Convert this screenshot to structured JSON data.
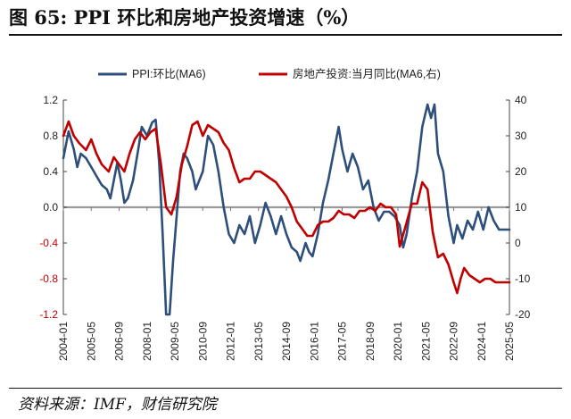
{
  "header": {
    "title": "图 65:  PPI 环比和房地产投资增速（%）"
  },
  "footer": {
    "source": "资料来源：IMF，财信研究院"
  },
  "chart_data": {
    "type": "line",
    "title": "",
    "legend_position": "top",
    "grid": false,
    "x_tick_labels": [
      "2004-01",
      "2005-05",
      "2006-09",
      "2008-01",
      "2009-05",
      "2010-09",
      "2012-01",
      "2013-05",
      "2014-09",
      "2016-01",
      "2017-05",
      "2018-09",
      "2020-01",
      "2021-05",
      "2022-09",
      "2024-01",
      "2025-05"
    ],
    "x_start": "2004-01",
    "x_end": "2025-05",
    "left_axis": {
      "min": -1.2,
      "max": 1.2,
      "ticks": [
        "1.2",
        "0.8",
        "0.4",
        "0.0",
        "-0.4",
        "-0.8",
        "-1.2"
      ]
    },
    "right_axis": {
      "min": -20,
      "max": 40,
      "ticks": [
        "40",
        "30",
        "20",
        "10",
        "0",
        "-10",
        "-20"
      ]
    },
    "series": [
      {
        "name": "PPI:环比(MA6)",
        "axis": "left",
        "color": "#2e4f7a",
        "points": [
          [
            "2004-01",
            0.55
          ],
          [
            "2004-04",
            0.85
          ],
          [
            "2004-07",
            0.65
          ],
          [
            "2004-09",
            0.45
          ],
          [
            "2004-11",
            0.6
          ],
          [
            "2005-02",
            0.55
          ],
          [
            "2005-05",
            0.45
          ],
          [
            "2005-08",
            0.35
          ],
          [
            "2005-11",
            0.25
          ],
          [
            "2006-02",
            0.2
          ],
          [
            "2006-04",
            0.1
          ],
          [
            "2006-06",
            0.3
          ],
          [
            "2006-08",
            0.5
          ],
          [
            "2006-10",
            0.3
          ],
          [
            "2006-12",
            0.05
          ],
          [
            "2007-02",
            0.1
          ],
          [
            "2007-05",
            0.3
          ],
          [
            "2007-08",
            0.65
          ],
          [
            "2007-10",
            0.9
          ],
          [
            "2008-01",
            0.8
          ],
          [
            "2008-04",
            0.95
          ],
          [
            "2008-06",
            0.98
          ],
          [
            "2008-08",
            0.5
          ],
          [
            "2008-10",
            -0.3
          ],
          [
            "2008-12",
            -1.2
          ],
          [
            "2009-02",
            -1.2
          ],
          [
            "2009-04",
            -0.6
          ],
          [
            "2009-06",
            -0.1
          ],
          [
            "2009-08",
            0.4
          ],
          [
            "2009-10",
            0.6
          ],
          [
            "2009-12",
            0.55
          ],
          [
            "2010-03",
            0.4
          ],
          [
            "2010-05",
            0.2
          ],
          [
            "2010-07",
            0.3
          ],
          [
            "2010-09",
            0.4
          ],
          [
            "2010-12",
            0.8
          ],
          [
            "2011-03",
            0.7
          ],
          [
            "2011-06",
            0.4
          ],
          [
            "2011-09",
            0.0
          ],
          [
            "2011-12",
            -0.3
          ],
          [
            "2012-03",
            -0.4
          ],
          [
            "2012-06",
            -0.2
          ],
          [
            "2012-09",
            -0.3
          ],
          [
            "2012-12",
            -0.1
          ],
          [
            "2013-03",
            -0.4
          ],
          [
            "2013-06",
            -0.2
          ],
          [
            "2013-09",
            0.05
          ],
          [
            "2013-12",
            -0.1
          ],
          [
            "2014-03",
            -0.3
          ],
          [
            "2014-06",
            -0.1
          ],
          [
            "2014-09",
            -0.3
          ],
          [
            "2014-12",
            -0.45
          ],
          [
            "2015-03",
            -0.5
          ],
          [
            "2015-05",
            -0.6
          ],
          [
            "2015-08",
            -0.4
          ],
          [
            "2015-10",
            -0.5
          ],
          [
            "2015-12",
            -0.55
          ],
          [
            "2016-03",
            -0.3
          ],
          [
            "2016-06",
            0.05
          ],
          [
            "2016-09",
            0.3
          ],
          [
            "2016-12",
            0.6
          ],
          [
            "2017-03",
            0.9
          ],
          [
            "2017-05",
            0.65
          ],
          [
            "2017-08",
            0.4
          ],
          [
            "2017-11",
            0.6
          ],
          [
            "2018-02",
            0.45
          ],
          [
            "2018-05",
            0.2
          ],
          [
            "2018-08",
            0.3
          ],
          [
            "2018-11",
            0.0
          ],
          [
            "2019-02",
            -0.15
          ],
          [
            "2019-05",
            -0.05
          ],
          [
            "2019-08",
            -0.05
          ],
          [
            "2019-11",
            -0.1
          ],
          [
            "2020-02",
            -0.2
          ],
          [
            "2020-04",
            -0.45
          ],
          [
            "2020-06",
            -0.3
          ],
          [
            "2020-09",
            0.1
          ],
          [
            "2020-12",
            0.4
          ],
          [
            "2021-03",
            0.9
          ],
          [
            "2021-06",
            1.15
          ],
          [
            "2021-08",
            1.0
          ],
          [
            "2021-10",
            1.15
          ],
          [
            "2021-12",
            0.6
          ],
          [
            "2022-03",
            0.4
          ],
          [
            "2022-06",
            -0.1
          ],
          [
            "2022-09",
            -0.4
          ],
          [
            "2022-11",
            -0.2
          ],
          [
            "2023-02",
            -0.35
          ],
          [
            "2023-05",
            -0.15
          ],
          [
            "2023-08",
            -0.25
          ],
          [
            "2023-11",
            -0.05
          ],
          [
            "2024-02",
            -0.25
          ],
          [
            "2024-05",
            0.0
          ],
          [
            "2024-08",
            -0.15
          ],
          [
            "2024-11",
            -0.25
          ],
          [
            "2025-02",
            -0.25
          ],
          [
            "2025-05",
            -0.25
          ]
        ]
      },
      {
        "name": "房地产投资:当月同比(MA6,右)",
        "axis": "right",
        "color": "#c00000",
        "points": [
          [
            "2004-01",
            30
          ],
          [
            "2004-04",
            34
          ],
          [
            "2004-07",
            30
          ],
          [
            "2004-10",
            28
          ],
          [
            "2005-02",
            26
          ],
          [
            "2005-05",
            29
          ],
          [
            "2005-08",
            25
          ],
          [
            "2005-11",
            22
          ],
          [
            "2006-03",
            20
          ],
          [
            "2006-06",
            24
          ],
          [
            "2006-09",
            22
          ],
          [
            "2006-12",
            20
          ],
          [
            "2007-03",
            25
          ],
          [
            "2007-06",
            29
          ],
          [
            "2007-09",
            31
          ],
          [
            "2007-12",
            29
          ],
          [
            "2008-03",
            31
          ],
          [
            "2008-06",
            32
          ],
          [
            "2008-09",
            22
          ],
          [
            "2008-12",
            10
          ],
          [
            "2009-03",
            8
          ],
          [
            "2009-06",
            13
          ],
          [
            "2009-09",
            22
          ],
          [
            "2009-12",
            27
          ],
          [
            "2010-03",
            33
          ],
          [
            "2010-06",
            34
          ],
          [
            "2010-09",
            30
          ],
          [
            "2010-12",
            33
          ],
          [
            "2011-03",
            32
          ],
          [
            "2011-06",
            31
          ],
          [
            "2011-09",
            28
          ],
          [
            "2011-12",
            26
          ],
          [
            "2012-03",
            21
          ],
          [
            "2012-06",
            17
          ],
          [
            "2012-09",
            18
          ],
          [
            "2012-12",
            18
          ],
          [
            "2013-03",
            20
          ],
          [
            "2013-06",
            20
          ],
          [
            "2013-09",
            19
          ],
          [
            "2013-12",
            18
          ],
          [
            "2014-03",
            17
          ],
          [
            "2014-06",
            15
          ],
          [
            "2014-09",
            13
          ],
          [
            "2014-12",
            10
          ],
          [
            "2015-03",
            6
          ],
          [
            "2015-06",
            4
          ],
          [
            "2015-09",
            2
          ],
          [
            "2015-12",
            2
          ],
          [
            "2016-03",
            5
          ],
          [
            "2016-06",
            6
          ],
          [
            "2016-09",
            6
          ],
          [
            "2016-12",
            7
          ],
          [
            "2017-03",
            9
          ],
          [
            "2017-06",
            8
          ],
          [
            "2017-09",
            8
          ],
          [
            "2017-12",
            7
          ],
          [
            "2018-03",
            9
          ],
          [
            "2018-06",
            9
          ],
          [
            "2018-09",
            10
          ],
          [
            "2018-12",
            9
          ],
          [
            "2019-03",
            11
          ],
          [
            "2019-06",
            10
          ],
          [
            "2019-09",
            10
          ],
          [
            "2019-12",
            8
          ],
          [
            "2020-02",
            -1
          ],
          [
            "2020-05",
            4
          ],
          [
            "2020-09",
            11
          ],
          [
            "2020-12",
            11
          ],
          [
            "2021-03",
            17
          ],
          [
            "2021-06",
            15
          ],
          [
            "2021-09",
            3
          ],
          [
            "2021-12",
            -4
          ],
          [
            "2022-03",
            -3
          ],
          [
            "2022-06",
            -6
          ],
          [
            "2022-09",
            -11
          ],
          [
            "2022-11",
            -14
          ],
          [
            "2023-01",
            -10
          ],
          [
            "2023-03",
            -7
          ],
          [
            "2023-06",
            -9
          ],
          [
            "2023-09",
            -10
          ],
          [
            "2023-12",
            -11
          ],
          [
            "2024-03",
            -10
          ],
          [
            "2024-06",
            -10
          ],
          [
            "2024-09",
            -11
          ],
          [
            "2024-12",
            -11
          ],
          [
            "2025-03",
            -11
          ],
          [
            "2025-05",
            -11
          ]
        ]
      }
    ]
  }
}
